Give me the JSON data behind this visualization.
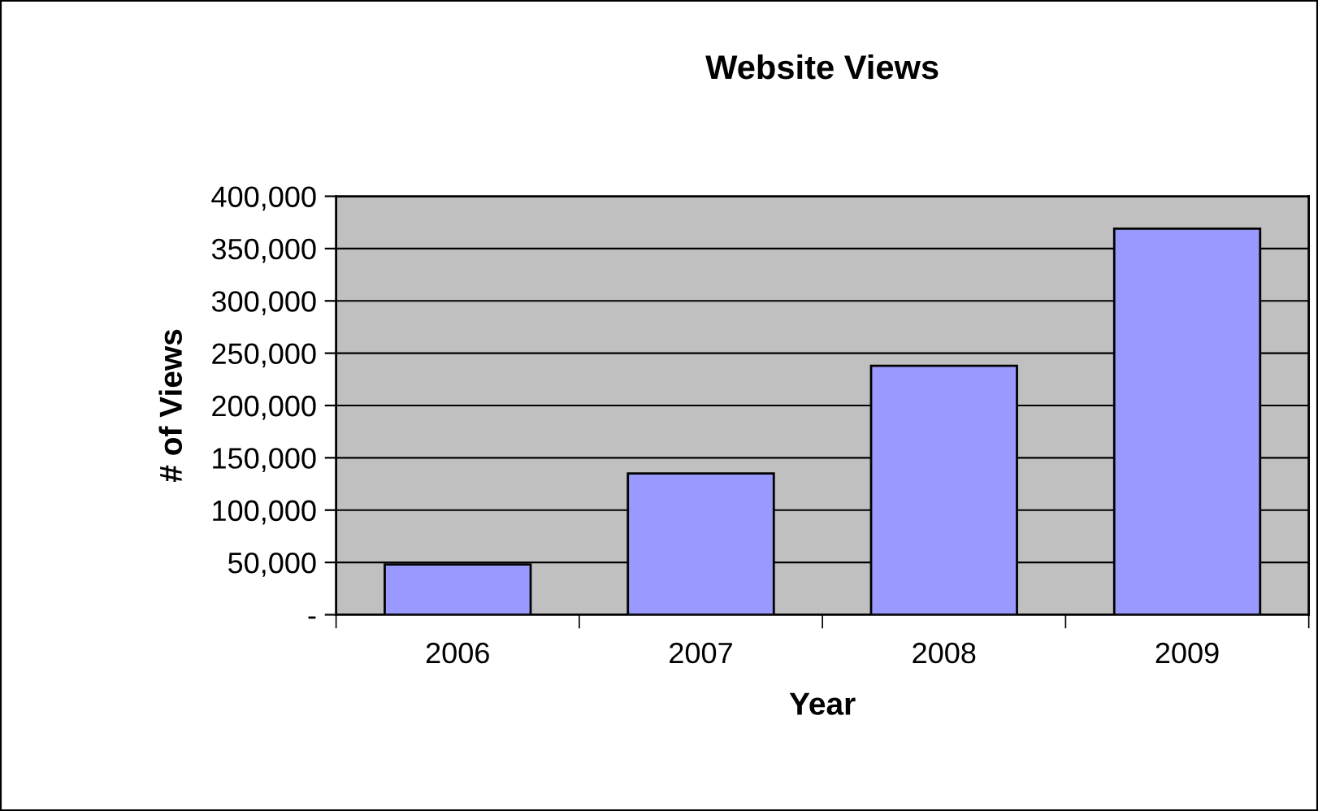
{
  "chart_data": {
    "type": "bar",
    "title": "Website Views",
    "xlabel": "Year",
    "ylabel": "# of Views",
    "categories": [
      "2006",
      "2007",
      "2008",
      "2009"
    ],
    "series": [
      {
        "color": "#9999ff",
        "values": [
          48000,
          135000,
          238000,
          369000
        ]
      }
    ],
    "ylim": [
      0,
      400000
    ],
    "yticks": [
      {
        "value": 0,
        "label": "-"
      },
      {
        "value": 50000,
        "label": "50,000"
      },
      {
        "value": 100000,
        "label": "100,000"
      },
      {
        "value": 150000,
        "label": "150,000"
      },
      {
        "value": 200000,
        "label": "200,000"
      },
      {
        "value": 250000,
        "label": "250,000"
      },
      {
        "value": 300000,
        "label": "300,000"
      },
      {
        "value": 350000,
        "label": "350,000"
      },
      {
        "value": 400000,
        "label": "400,000"
      }
    ],
    "grid": "y"
  }
}
